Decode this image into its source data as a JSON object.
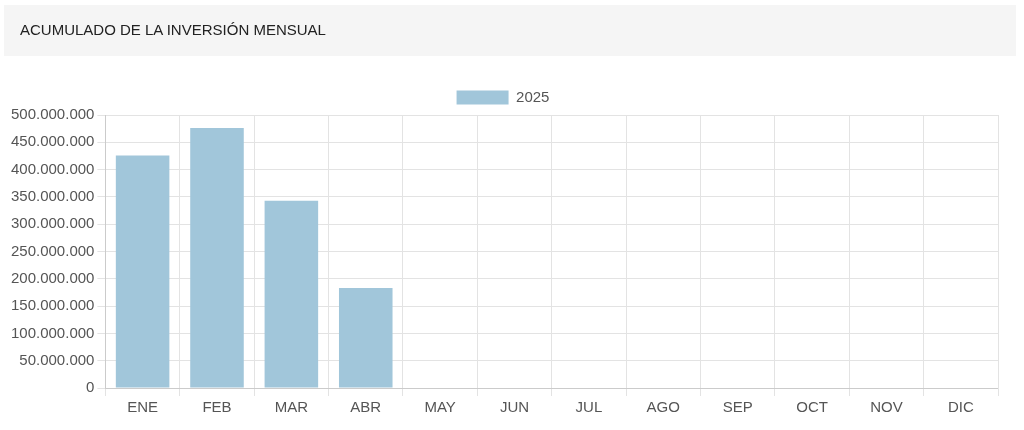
{
  "chart_data": {
    "type": "bar",
    "title": "ACUMULADO DE LA INVERSIÓN MENSUAL",
    "categories": [
      "ENE",
      "FEB",
      "MAR",
      "ABR",
      "MAY",
      "JUN",
      "JUL",
      "AGO",
      "SEP",
      "OCT",
      "NOV",
      "DIC"
    ],
    "series": [
      {
        "name": "2025",
        "color": "#a1c6da",
        "values": [
          426000000,
          476000000,
          343000000,
          183000000,
          null,
          null,
          null,
          null,
          null,
          null,
          null,
          null
        ]
      }
    ],
    "ylim": [
      0,
      500000000
    ],
    "yticks": [
      {
        "value": 0,
        "label": "0"
      },
      {
        "value": 50000000,
        "label": "50.000.000"
      },
      {
        "value": 100000000,
        "label": "100.000.000"
      },
      {
        "value": 150000000,
        "label": "150.000.000"
      },
      {
        "value": 200000000,
        "label": "200.000.000"
      },
      {
        "value": 250000000,
        "label": "250.000.000"
      },
      {
        "value": 300000000,
        "label": "300.000.000"
      },
      {
        "value": 350000000,
        "label": "350.000.000"
      },
      {
        "value": 400000000,
        "label": "400.000.000"
      },
      {
        "value": 450000000,
        "label": "450.000.000"
      },
      {
        "value": 500000000,
        "label": "500.000.000"
      }
    ],
    "grid": true,
    "legend": "top"
  }
}
